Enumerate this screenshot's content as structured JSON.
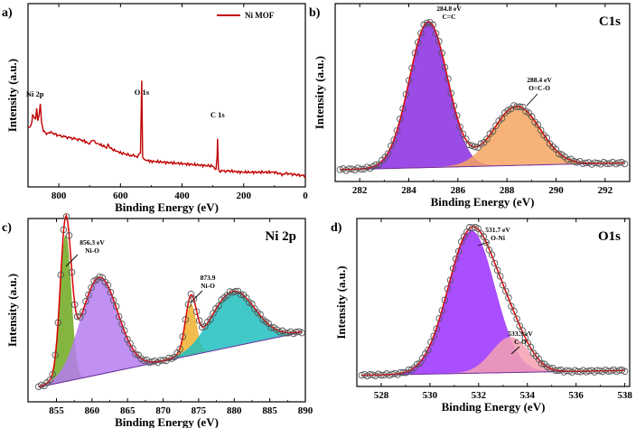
{
  "chart_data": [
    {
      "type": "line",
      "panel_label": "a)",
      "xlabel": "Binding Energy (eV)",
      "ylabel": "Intensity (a.u.)",
      "xlim": [
        900,
        0
      ],
      "xticks": [
        800,
        600,
        400,
        200,
        0
      ],
      "legend": {
        "placement": "top-right",
        "label": "Ni MOF",
        "color": "#c00000"
      },
      "peak_labels": [
        {
          "text": "Ni 2p",
          "x": 860
        },
        {
          "text": "O 1s",
          "x": 531
        },
        {
          "text": "C 1s",
          "x": 285
        }
      ],
      "series": [
        {
          "name": "Ni MOF",
          "color": "#c00000",
          "x": [
            900,
            890,
            885,
            875,
            872,
            868,
            864,
            860,
            856,
            850,
            840,
            830,
            800,
            760,
            720,
            700,
            690,
            680,
            660,
            645,
            640,
            635,
            620,
            600,
            570,
            545,
            535,
            531,
            528,
            520,
            500,
            450,
            400,
            350,
            300,
            290,
            286,
            285,
            282,
            278,
            250,
            200,
            150,
            100,
            70,
            60,
            30,
            0
          ],
          "y": [
            0.18,
            0.2,
            0.28,
            0.25,
            0.34,
            0.24,
            0.3,
            0.38,
            0.22,
            0.16,
            0.14,
            0.15,
            0.12,
            0.1,
            0.08,
            0.05,
            0.08,
            0.06,
            0.04,
            0.02,
            0.05,
            0.02,
            0.0,
            -0.02,
            -0.04,
            -0.05,
            -0.02,
            0.58,
            -0.06,
            -0.08,
            -0.09,
            -0.1,
            -0.11,
            -0.12,
            -0.13,
            -0.15,
            -0.05,
            0.1,
            -0.16,
            -0.17,
            -0.17,
            -0.18,
            -0.18,
            -0.18,
            -0.2,
            -0.19,
            -0.2,
            -0.21
          ]
        }
      ]
    },
    {
      "type": "line",
      "panel_label": "b)",
      "panel_name": "C1s",
      "xlabel": "Binding Energy (eV)",
      "ylabel": "Intensity (a.u.)",
      "xlim": [
        281,
        293
      ],
      "xticks": [
        282,
        284,
        286,
        288,
        290,
        292
      ],
      "annotations": [
        {
          "text": "284.8 eV",
          "sub": "C=C"
        },
        {
          "text": "288.4 eV",
          "sub": "O=C-O"
        }
      ],
      "background": {
        "x": [
          281.2,
          292.8
        ],
        "y": [
          0.02,
          0.06
        ]
      },
      "peaks": [
        {
          "center": 284.8,
          "height": 0.86,
          "sigma": 0.78,
          "color": "#8a2be2"
        },
        {
          "center": 288.4,
          "height": 0.35,
          "sigma": 0.95,
          "color": "#f4a460"
        }
      ]
    },
    {
      "type": "line",
      "panel_label": "c)",
      "panel_name": "Ni 2p",
      "xlabel": "Binding Energy (eV)",
      "ylabel": "Intensity (a.u.)",
      "xlim": [
        851,
        890
      ],
      "xticks": [
        855,
        860,
        865,
        870,
        875,
        880,
        885,
        890
      ],
      "annotations": [
        {
          "text": "856.3 eV",
          "sub": "Ni-O"
        },
        {
          "text": "873.9",
          "sub": "Ni-O"
        }
      ],
      "background": {
        "x": [
          852.5,
          889.5
        ],
        "y": [
          0.08,
          0.38
        ]
      },
      "peaks": [
        {
          "center": 856.3,
          "height": 0.8,
          "sigma": 0.75,
          "color": "#6fa820"
        },
        {
          "center": 861.0,
          "height": 0.53,
          "sigma": 2.6,
          "color": "#b57cf0"
        },
        {
          "center": 873.9,
          "height": 0.28,
          "sigma": 0.75,
          "color": "#f0b030"
        },
        {
          "center": 879.8,
          "height": 0.3,
          "sigma": 3.1,
          "color": "#20c0c0"
        }
      ]
    },
    {
      "type": "line",
      "panel_label": "d)",
      "panel_name": "O1s",
      "xlabel": "Binding Energy (eV)",
      "ylabel": "Intensity (a.u.)",
      "xlim": [
        527,
        538.2
      ],
      "xticks": [
        528,
        530,
        532,
        534,
        536,
        538
      ],
      "annotations": [
        {
          "text": "531.7 eV",
          "sub": "O-Ni"
        },
        {
          "text": "533.3 eV",
          "sub": "C-O"
        }
      ],
      "background": {
        "x": [
          527.2,
          538
        ],
        "y": [
          0.02,
          0.05
        ]
      },
      "peaks": [
        {
          "center": 531.7,
          "height": 0.89,
          "sigma": 0.95,
          "color": "#9b30ff"
        },
        {
          "center": 533.3,
          "height": 0.22,
          "sigma": 0.75,
          "color": "#f5a0b0"
        }
      ]
    }
  ]
}
